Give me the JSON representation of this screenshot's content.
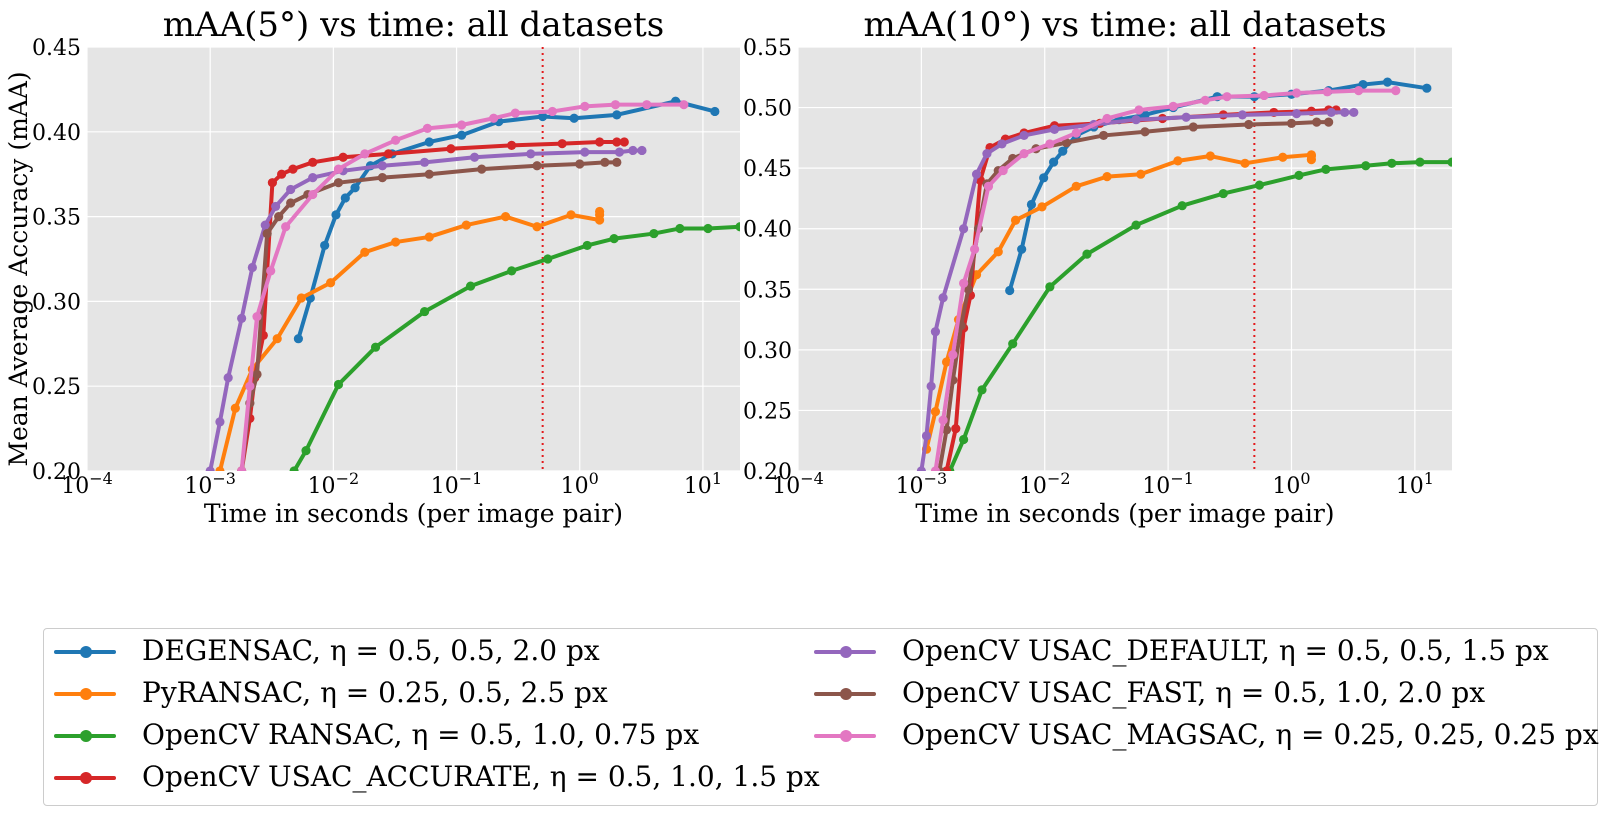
{
  "chart_data": [
    {
      "type": "line",
      "title": "mAA(5°) vs time: all datasets",
      "xlabel": "Time in seconds (per image pair)",
      "ylabel": "Mean Average Accuracy (mAA)",
      "xscale": "log",
      "xlim": [
        0.0001,
        20
      ],
      "ylim": [
        0.2,
        0.45
      ],
      "xticks": [
        "10^-4",
        "10^-3",
        "10^-2",
        "10^-1",
        "10^0",
        "10^1"
      ],
      "yticks": [
        "0.20",
        "0.25",
        "0.30",
        "0.35",
        "0.40",
        "0.45"
      ],
      "vline": {
        "x": 0.5,
        "style": "dotted",
        "color": "#e41a1c"
      },
      "grid": true,
      "series": [
        {
          "name": "DEGENSAC, η = 0.5, 0.5, 2.0 px",
          "color": "#1f77b4",
          "x": [
            0.0052,
            0.0065,
            0.0085,
            0.0105,
            0.0125,
            0.015,
            0.02,
            0.03,
            0.06,
            0.11,
            0.22,
            0.5,
            0.9,
            2.0,
            6.0,
            12.5
          ],
          "y": [
            0.278,
            0.302,
            0.333,
            0.351,
            0.361,
            0.367,
            0.38,
            0.387,
            0.394,
            0.398,
            0.406,
            0.409,
            0.408,
            0.41,
            0.418,
            0.412
          ]
        },
        {
          "name": "PyRANSAC, η = 0.25, 0.5, 2.5 px",
          "color": "#ff7f0e",
          "x": [
            0.0012,
            0.0016,
            0.0022,
            0.0035,
            0.0055,
            0.0095,
            0.018,
            0.032,
            0.06,
            0.12,
            0.25,
            0.45,
            0.85,
            1.45,
            1.45,
            1.45
          ],
          "y": [
            0.2,
            0.237,
            0.26,
            0.278,
            0.302,
            0.311,
            0.329,
            0.335,
            0.338,
            0.345,
            0.35,
            0.344,
            0.351,
            0.348,
            0.351,
            0.353
          ]
        },
        {
          "name": "OpenCV RANSAC, η = 0.5, 1.0, 0.75 px",
          "color": "#2ca02c",
          "x": [
            0.0048,
            0.006,
            0.011,
            0.022,
            0.055,
            0.13,
            0.28,
            0.55,
            1.15,
            1.9,
            4.0,
            6.5,
            11.0,
            20.0
          ],
          "y": [
            0.2,
            0.212,
            0.251,
            0.273,
            0.294,
            0.309,
            0.318,
            0.325,
            0.333,
            0.337,
            0.34,
            0.343,
            0.343,
            0.344
          ]
        },
        {
          "name": "OpenCV USAC_ACCURATE, η = 0.5, 1.0, 1.5 px",
          "color": "#d62728",
          "x": [
            0.0018,
            0.0021,
            0.0023,
            0.0027,
            0.0032,
            0.0038,
            0.0047,
            0.0068,
            0.012,
            0.028,
            0.09,
            0.28,
            0.72,
            1.45,
            2.0,
            2.3
          ],
          "y": [
            0.2,
            0.231,
            0.255,
            0.28,
            0.37,
            0.375,
            0.378,
            0.382,
            0.385,
            0.387,
            0.39,
            0.392,
            0.393,
            0.394,
            0.394,
            0.394
          ]
        },
        {
          "name": "OpenCV USAC_DEFAULT, η = 0.5, 0.5, 1.5 px",
          "color": "#9467bd",
          "x": [
            0.001,
            0.0012,
            0.0014,
            0.0018,
            0.0022,
            0.0028,
            0.0034,
            0.0045,
            0.0068,
            0.012,
            0.025,
            0.055,
            0.14,
            0.4,
            1.1,
            2.1,
            2.7,
            3.2
          ],
          "y": [
            0.2,
            0.229,
            0.255,
            0.29,
            0.32,
            0.345,
            0.356,
            0.366,
            0.373,
            0.377,
            0.38,
            0.382,
            0.385,
            0.387,
            0.388,
            0.388,
            0.389,
            0.389
          ]
        },
        {
          "name": "OpenCV USAC_FAST, η = 0.5, 1.0, 2.0 px",
          "color": "#8c564b",
          "x": [
            0.0018,
            0.0021,
            0.0024,
            0.0029,
            0.0036,
            0.0045,
            0.0062,
            0.011,
            0.025,
            0.06,
            0.16,
            0.45,
            1.0,
            1.6,
            2.0
          ],
          "y": [
            0.2,
            0.24,
            0.257,
            0.34,
            0.35,
            0.358,
            0.363,
            0.37,
            0.373,
            0.375,
            0.378,
            0.38,
            0.381,
            0.382,
            0.382
          ]
        },
        {
          "name": "OpenCV USAC_MAGSAC, η = 0.25, 0.25, 0.25 px",
          "color": "#e377c2",
          "x": [
            0.0018,
            0.0021,
            0.0024,
            0.0031,
            0.0041,
            0.0068,
            0.011,
            0.018,
            0.032,
            0.058,
            0.11,
            0.2,
            0.3,
            0.6,
            1.1,
            1.95,
            3.5,
            7.0
          ],
          "y": [
            0.2,
            0.25,
            0.291,
            0.318,
            0.344,
            0.363,
            0.378,
            0.387,
            0.395,
            0.402,
            0.404,
            0.408,
            0.411,
            0.412,
            0.415,
            0.416,
            0.416,
            0.416
          ]
        }
      ]
    },
    {
      "type": "line",
      "title": "mAA(10°) vs time: all datasets",
      "xlabel": "Time in seconds (per image pair)",
      "ylabel": "",
      "xscale": "log",
      "xlim": [
        0.0001,
        20
      ],
      "ylim": [
        0.2,
        0.55
      ],
      "xticks": [
        "10^-4",
        "10^-3",
        "10^-2",
        "10^-1",
        "10^0",
        "10^1"
      ],
      "yticks": [
        "0.20",
        "0.25",
        "0.30",
        "0.35",
        "0.40",
        "0.45",
        "0.50",
        "0.55"
      ],
      "vline": {
        "x": 0.5,
        "style": "dotted",
        "color": "#e41a1c"
      },
      "grid": true,
      "series": [
        {
          "name": "DEGENSAC, η = 0.5, 0.5, 2.0 px",
          "color": "#1f77b4",
          "x": [
            0.0052,
            0.0065,
            0.0078,
            0.0098,
            0.0118,
            0.014,
            0.018,
            0.025,
            0.04,
            0.065,
            0.11,
            0.25,
            0.5,
            1.0,
            2.0,
            3.8,
            6.0,
            12.5
          ],
          "y": [
            0.349,
            0.383,
            0.42,
            0.442,
            0.455,
            0.464,
            0.477,
            0.484,
            0.49,
            0.494,
            0.5,
            0.509,
            0.509,
            0.511,
            0.514,
            0.519,
            0.521,
            0.516
          ]
        },
        {
          "name": "PyRANSAC, η = 0.25, 0.5, 2.5 px",
          "color": "#ff7f0e",
          "x": [
            0.0011,
            0.0013,
            0.0016,
            0.002,
            0.0028,
            0.0042,
            0.0058,
            0.0095,
            0.018,
            0.032,
            0.06,
            0.12,
            0.22,
            0.42,
            0.85,
            1.45,
            1.45,
            1.45
          ],
          "y": [
            0.218,
            0.249,
            0.29,
            0.325,
            0.362,
            0.381,
            0.407,
            0.418,
            0.435,
            0.443,
            0.445,
            0.456,
            0.46,
            0.454,
            0.459,
            0.461,
            0.46,
            0.457
          ]
        },
        {
          "name": "OpenCV RANSAC, η = 0.5, 1.0, 0.75 px",
          "color": "#2ca02c",
          "x": [
            0.0017,
            0.0022,
            0.0031,
            0.0055,
            0.011,
            0.022,
            0.055,
            0.13,
            0.28,
            0.55,
            1.15,
            1.9,
            4.0,
            6.5,
            11.0,
            20.0
          ],
          "y": [
            0.2,
            0.226,
            0.267,
            0.305,
            0.352,
            0.379,
            0.403,
            0.419,
            0.429,
            0.436,
            0.444,
            0.449,
            0.452,
            0.454,
            0.455,
            0.455
          ]
        },
        {
          "name": "OpenCV USAC_ACCURATE, η = 0.5, 1.0, 1.5 px",
          "color": "#d62728",
          "x": [
            0.0016,
            0.0019,
            0.0022,
            0.0025,
            0.003,
            0.0036,
            0.0048,
            0.0068,
            0.012,
            0.028,
            0.09,
            0.28,
            0.72,
            1.45,
            2.0,
            2.3
          ],
          "y": [
            0.2,
            0.235,
            0.318,
            0.345,
            0.44,
            0.467,
            0.474,
            0.479,
            0.485,
            0.487,
            0.491,
            0.494,
            0.496,
            0.497,
            0.498,
            0.498
          ]
        },
        {
          "name": "OpenCV USAC_DEFAULT, η = 0.5, 0.5, 1.5 px",
          "color": "#9467bd",
          "x": [
            0.001,
            0.0011,
            0.0012,
            0.0013,
            0.0015,
            0.0022,
            0.0028,
            0.0034,
            0.0045,
            0.0068,
            0.012,
            0.025,
            0.055,
            0.14,
            0.4,
            1.1,
            2.1,
            2.7,
            3.2
          ],
          "y": [
            0.2,
            0.229,
            0.27,
            0.315,
            0.343,
            0.4,
            0.445,
            0.462,
            0.47,
            0.477,
            0.482,
            0.486,
            0.49,
            0.492,
            0.494,
            0.495,
            0.496,
            0.496,
            0.496
          ]
        },
        {
          "name": "OpenCV USAC_FAST, η = 0.5, 1.0, 2.0 px",
          "color": "#8c564b",
          "x": [
            0.0014,
            0.0016,
            0.0018,
            0.0021,
            0.0024,
            0.0029,
            0.0034,
            0.0042,
            0.0055,
            0.0085,
            0.015,
            0.03,
            0.065,
            0.16,
            0.45,
            1.0,
            1.6,
            2.0
          ],
          "y": [
            0.2,
            0.234,
            0.275,
            0.32,
            0.35,
            0.4,
            0.437,
            0.448,
            0.458,
            0.466,
            0.471,
            0.477,
            0.48,
            0.484,
            0.486,
            0.487,
            0.488,
            0.488
          ]
        },
        {
          "name": "OpenCV USAC_MAGSAC, η = 0.25, 0.25, 0.25 px",
          "color": "#e377c2",
          "x": [
            0.0013,
            0.0015,
            0.0018,
            0.0022,
            0.0027,
            0.0035,
            0.0046,
            0.0068,
            0.011,
            0.018,
            0.032,
            0.058,
            0.11,
            0.2,
            0.3,
            0.6,
            1.1,
            1.95,
            3.5,
            7.0
          ],
          "y": [
            0.2,
            0.242,
            0.296,
            0.355,
            0.383,
            0.435,
            0.448,
            0.462,
            0.47,
            0.479,
            0.491,
            0.498,
            0.501,
            0.506,
            0.509,
            0.51,
            0.512,
            0.513,
            0.514,
            0.514
          ]
        }
      ]
    }
  ],
  "legend": {
    "items": [
      {
        "label": "DEGENSAC, η = 0.5, 0.5, 2.0 px",
        "color": "#1f77b4"
      },
      {
        "label": "PyRANSAC, η = 0.25, 0.5, 2.5 px",
        "color": "#ff7f0e"
      },
      {
        "label": "OpenCV RANSAC, η = 0.5, 1.0, 0.75 px",
        "color": "#2ca02c"
      },
      {
        "label": "OpenCV USAC_ACCURATE, η = 0.5, 1.0, 1.5 px",
        "color": "#d62728"
      },
      {
        "label": "OpenCV USAC_DEFAULT, η = 0.5, 0.5, 1.5 px",
        "color": "#9467bd"
      },
      {
        "label": "OpenCV USAC_FAST, η = 0.5, 1.0, 2.0 px",
        "color": "#8c564b"
      },
      {
        "label": "OpenCV USAC_MAGSAC, η = 0.25, 0.25, 0.25 px",
        "color": "#e377c2"
      }
    ]
  },
  "style": {
    "plot_bg": "#e5e5e5",
    "grid_color": "#ffffff",
    "vline_color": "#e41a1c"
  }
}
